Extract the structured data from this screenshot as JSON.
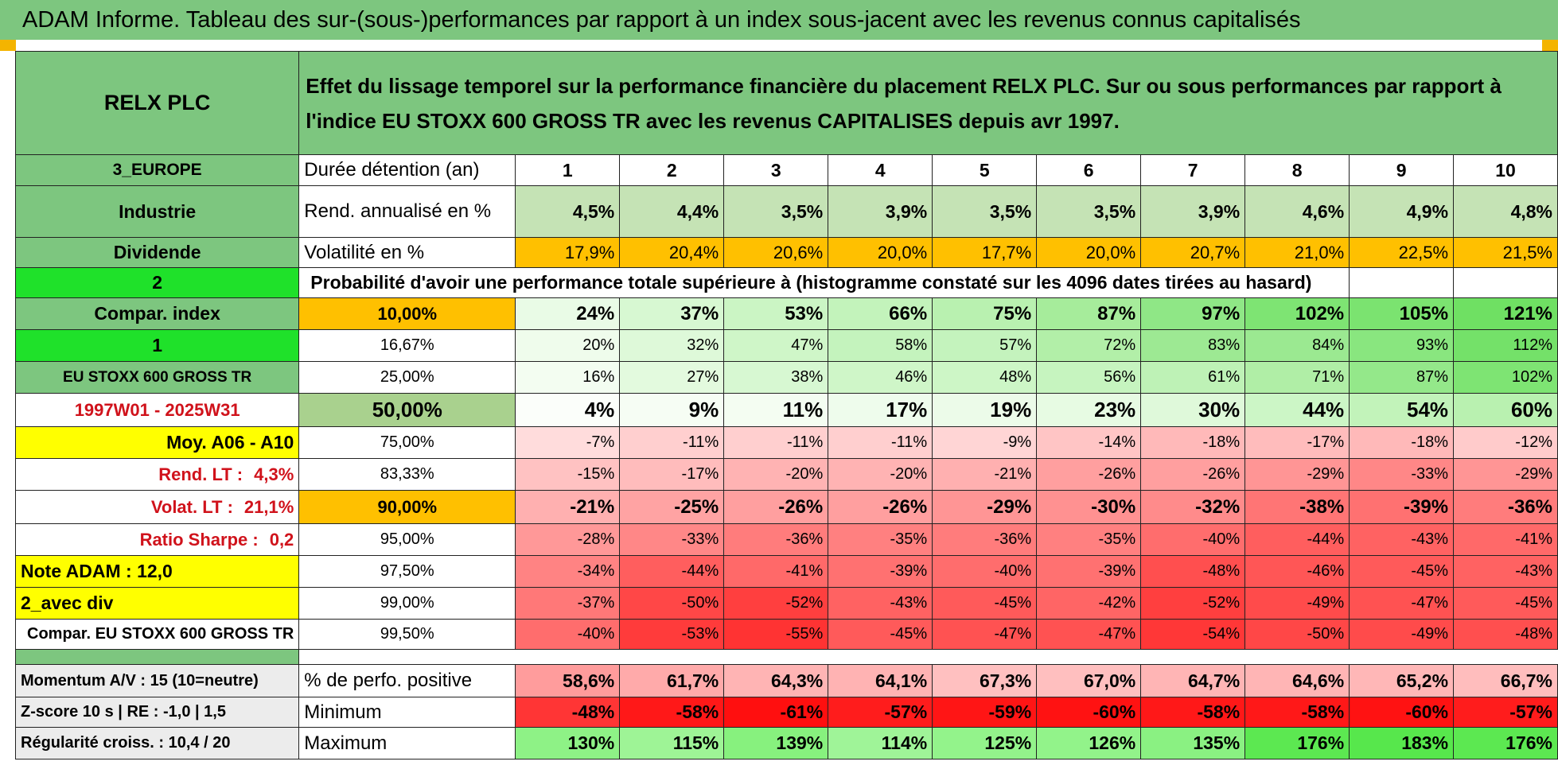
{
  "title": "ADAM Informe. Tableau des sur-(sous-)performances par rapport à un index sous-jacent avec les revenus connus capitalisés",
  "side": {
    "company": "RELX PLC",
    "region": "3_EUROPE",
    "sector": "Industrie",
    "dividend": "Dividende",
    "sel_a": "2",
    "compar_index": "Compar. index",
    "sel_b": "1",
    "index_name": "EU STOXX 600 GROSS TR",
    "period": "1997W01 - 2025W31",
    "moy": "Moy. A06 - A10",
    "rend_lt_label": "Rend. LT :",
    "rend_lt_value": "4,3%",
    "volat_lt_label": "Volat. LT :",
    "volat_lt_value": "21,1%",
    "sharpe_label": "Ratio Sharpe :",
    "sharpe_value": "0,2",
    "note": "Note ADAM : 12,0",
    "avec_div": "2_avec div",
    "compar_full": "Compar. EU STOXX 600 GROSS TR",
    "momentum": "Momentum A/V : 15 (10=neutre)",
    "zscore": "Z-score 10 s | RE : -1,0 | 1,5",
    "regularite": "Régularité croiss. : 10,4 / 20"
  },
  "header_text": "Effet du lissage temporel sur la performance financière du placement RELX PLC. Sur ou sous performances par rapport à l'indice EU STOXX 600 GROSS TR avec les revenus CAPITALISES depuis avr 1997.",
  "labels": {
    "duree": "Durée détention (an)",
    "rend": "Rend. annualisé en %",
    "volat": "Volatilité en %",
    "prob": "Probabilité d'avoir une performance totale supérieure à (histogramme constaté sur les 4096 dates tirées au hasard)",
    "pos": "% de perfo. positive",
    "min": "Minimum",
    "max": "Maximum"
  },
  "years": [
    "1",
    "2",
    "3",
    "4",
    "5",
    "6",
    "7",
    "8",
    "9",
    "10"
  ],
  "rend": [
    "4,5%",
    "4,4%",
    "3,5%",
    "3,9%",
    "3,5%",
    "3,5%",
    "3,9%",
    "4,6%",
    "4,9%",
    "4,8%"
  ],
  "volat": [
    "17,9%",
    "20,4%",
    "20,6%",
    "20,0%",
    "17,7%",
    "20,0%",
    "20,7%",
    "21,0%",
    "22,5%",
    "21,5%"
  ],
  "volat_colors": [
    "#ffc000",
    "#ffc000",
    "#ffc000",
    "#ffc000",
    "#ffc000",
    "#ffc000",
    "#ffc000",
    "#ffc000",
    "#ffc000",
    "#ffc000"
  ],
  "quantiles": [
    {
      "q": "10,00%",
      "vals": [
        "24%",
        "37%",
        "53%",
        "66%",
        "75%",
        "87%",
        "97%",
        "102%",
        "105%",
        "121%"
      ],
      "colors": [
        "#e9fbe6",
        "#d7f8d2",
        "#cbf5c4",
        "#c3f3bb",
        "#b9f1b0",
        "#a6ec9b",
        "#8fe786",
        "#7ee473",
        "#7be370",
        "#6fe063"
      ]
    },
    {
      "q": "16,67%",
      "vals": [
        "20%",
        "32%",
        "47%",
        "58%",
        "57%",
        "72%",
        "83%",
        "84%",
        "93%",
        "112%"
      ],
      "colors": [
        "#effcec",
        "#def9d9",
        "#cff6c8",
        "#c4f3bd",
        "#c4f3bd",
        "#b2efa8",
        "#9de993",
        "#9be991",
        "#89e67f",
        "#74e169"
      ]
    },
    {
      "q": "25,00%",
      "vals": [
        "16%",
        "27%",
        "38%",
        "46%",
        "48%",
        "56%",
        "61%",
        "71%",
        "87%",
        "102%"
      ],
      "colors": [
        "#f3fdf1",
        "#e3faDE",
        "#d7f8d2",
        "#cff6c8",
        "#cdf6c6",
        "#c6f4bf",
        "#bef2b6",
        "#b0eea6",
        "#94e88a",
        "#7ee473"
      ]
    },
    {
      "q": "50,00%",
      "vals": [
        "4%",
        "9%",
        "11%",
        "17%",
        "19%",
        "23%",
        "30%",
        "44%",
        "54%",
        "60%"
      ],
      "colors": [
        "#fbfefa",
        "#f6fdf4",
        "#f4fdf2",
        "#eefcec",
        "#ecfbe9",
        "#e7fbe3",
        "#dff9da",
        "#ccf6c6",
        "#c2f3ba",
        "#b9f1b0"
      ]
    },
    {
      "q": "75,00%",
      "vals": [
        "-7%",
        "-11%",
        "-11%",
        "-11%",
        "-9%",
        "-14%",
        "-18%",
        "-17%",
        "-18%",
        "-12%"
      ],
      "colors": [
        "#ffdcdc",
        "#ffcfcf",
        "#ffcfcf",
        "#ffcfcf",
        "#ffd5d5",
        "#ffc5c5",
        "#ffb9b9",
        "#ffbcbc",
        "#ffb9b9",
        "#ffcbcb"
      ]
    },
    {
      "q": "83,33%",
      "vals": [
        "-15%",
        "-17%",
        "-20%",
        "-20%",
        "-21%",
        "-26%",
        "-26%",
        "-29%",
        "-33%",
        "-29%"
      ],
      "colors": [
        "#ffc2c2",
        "#ffbcbc",
        "#ffb3b3",
        "#ffb3b3",
        "#ffb0b0",
        "#ff9f9f",
        "#ff9f9f",
        "#ff9595",
        "#ff8787",
        "#ff9595"
      ]
    },
    {
      "q": "90,00%",
      "vals": [
        "-21%",
        "-25%",
        "-26%",
        "-26%",
        "-29%",
        "-30%",
        "-32%",
        "-38%",
        "-39%",
        "-36%"
      ],
      "colors": [
        "#ffb0b0",
        "#ffa3a3",
        "#ff9f9f",
        "#ff9f9f",
        "#ff9595",
        "#ff9191",
        "#ff8b8b",
        "#ff7575",
        "#ff7171",
        "#ff7c7c"
      ]
    },
    {
      "q": "95,00%",
      "vals": [
        "-28%",
        "-33%",
        "-36%",
        "-35%",
        "-36%",
        "-35%",
        "-40%",
        "-44%",
        "-43%",
        "-41%"
      ],
      "colors": [
        "#ff9898",
        "#ff8787",
        "#ff7c7c",
        "#ff8080",
        "#ff7c7c",
        "#ff8080",
        "#ff6d6d",
        "#ff5e5e",
        "#ff6262",
        "#ff6969"
      ]
    },
    {
      "q": "97,50%",
      "vals": [
        "-34%",
        "-44%",
        "-41%",
        "-39%",
        "-40%",
        "-39%",
        "-48%",
        "-46%",
        "-45%",
        "-43%"
      ],
      "colors": [
        "#ff8383",
        "#ff5e5e",
        "#ff6969",
        "#ff7171",
        "#ff6d6d",
        "#ff7171",
        "#ff4f4f",
        "#ff5656",
        "#ff5a5a",
        "#ff6262"
      ]
    },
    {
      "q": "99,00%",
      "vals": [
        "-37%",
        "-50%",
        "-52%",
        "-43%",
        "-45%",
        "-42%",
        "-52%",
        "-49%",
        "-47%",
        "-45%"
      ],
      "colors": [
        "#ff7878",
        "#ff4747",
        "#ff3f3f",
        "#ff6262",
        "#ff5a5a",
        "#ff6565",
        "#ff3f3f",
        "#ff4b4b",
        "#ff5252",
        "#ff5a5a"
      ]
    },
    {
      "q": "99,50%",
      "vals": [
        "-40%",
        "-53%",
        "-55%",
        "-45%",
        "-47%",
        "-47%",
        "-54%",
        "-50%",
        "-49%",
        "-48%"
      ],
      "colors": [
        "#ff6d6d",
        "#ff3b3b",
        "#ff3333",
        "#ff5a5a",
        "#ff5252",
        "#ff5252",
        "#ff3737",
        "#ff4747",
        "#ff4b4b",
        "#ff4f4f"
      ]
    }
  ],
  "pos": [
    "58,6%",
    "61,7%",
    "64,3%",
    "64,1%",
    "67,3%",
    "67,0%",
    "64,7%",
    "64,6%",
    "65,2%",
    "66,7%"
  ],
  "pos_colors": [
    "#ff9c9c",
    "#ffaaaa",
    "#ffb4b4",
    "#ffb3b3",
    "#ffc0c0",
    "#ffbfbf",
    "#ffb5b5",
    "#ffb5b5",
    "#ffb7b7",
    "#ffbdbd"
  ],
  "min": [
    "-48%",
    "-58%",
    "-61%",
    "-57%",
    "-59%",
    "-60%",
    "-58%",
    "-58%",
    "-60%",
    "-57%"
  ],
  "min_colors": [
    "#ff3535",
    "#ff1818",
    "#ff0f0f",
    "#ff1c1c",
    "#ff1515",
    "#ff1212",
    "#ff1818",
    "#ff1818",
    "#ff1212",
    "#ff1c1c"
  ],
  "max": [
    "130%",
    "115%",
    "139%",
    "114%",
    "125%",
    "126%",
    "135%",
    "176%",
    "183%",
    "176%"
  ],
  "max_colors": [
    "#8ef286",
    "#9ef496",
    "#87f17e",
    "#9ff498",
    "#93f38b",
    "#92f38a",
    "#8af182",
    "#5ce851",
    "#57e74c",
    "#5ce851"
  ],
  "colors": {
    "title_green": "#7dc67f",
    "header_green": "#7dc67f",
    "rend_green": "#c5e3b5",
    "bright_green": "#1fe12a",
    "yellow": "#ffff00",
    "orange": "#ffc000",
    "label_red": "#d0121b"
  }
}
